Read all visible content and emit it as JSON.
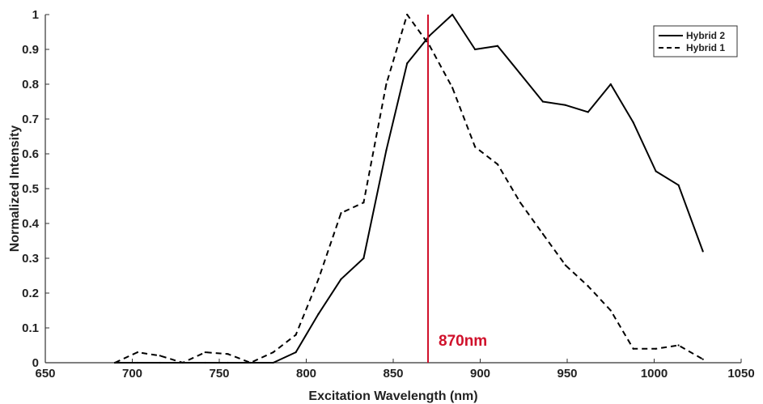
{
  "chart_data": {
    "type": "line",
    "xlabel": "Excitation Wavelength (nm)",
    "ylabel": "Normalized Intensity",
    "xlim": [
      650,
      1050
    ],
    "ylim": [
      0,
      1
    ],
    "x_ticks": [
      650,
      700,
      750,
      800,
      850,
      900,
      950,
      1000,
      1050
    ],
    "y_ticks": [
      0,
      0.1,
      0.2,
      0.3,
      0.4,
      0.5,
      0.6,
      0.7,
      0.8,
      0.9,
      1
    ],
    "grid": false,
    "legend_position": "top-right",
    "series": [
      {
        "name": "Hybrid 2",
        "style": "solid",
        "color": "#000000",
        "x": [
          690,
          703,
          716,
          729,
          742,
          755,
          768,
          781,
          794,
          807,
          820,
          833,
          846,
          858,
          871,
          884,
          897,
          910,
          923,
          936,
          949,
          962,
          975,
          988,
          1001,
          1014,
          1028
        ],
        "y": [
          0.0,
          0.0,
          0.0,
          0.0,
          0.0,
          0.0,
          0.0,
          0.0,
          0.03,
          0.14,
          0.24,
          0.3,
          0.61,
          0.86,
          0.94,
          1.0,
          0.9,
          0.91,
          0.83,
          0.75,
          0.74,
          0.72,
          0.8,
          0.69,
          0.55,
          0.51,
          0.32
        ]
      },
      {
        "name": "Hybrid 1",
        "style": "dashed",
        "color": "#000000",
        "x": [
          690,
          703,
          716,
          729,
          742,
          755,
          768,
          781,
          794,
          807,
          820,
          833,
          846,
          858,
          871,
          884,
          897,
          910,
          923,
          936,
          949,
          962,
          975,
          988,
          1001,
          1014,
          1028
        ],
        "y": [
          0.0,
          0.03,
          0.02,
          0.0,
          0.03,
          0.025,
          0.0,
          0.03,
          0.08,
          0.24,
          0.43,
          0.46,
          0.8,
          1.0,
          0.91,
          0.79,
          0.62,
          0.57,
          0.46,
          0.37,
          0.28,
          0.22,
          0.15,
          0.04,
          0.04,
          0.05,
          0.01
        ]
      }
    ],
    "annotations": [
      {
        "type": "vertical-line",
        "x": 870,
        "color": "#d0112b",
        "label": "870nm"
      }
    ]
  }
}
